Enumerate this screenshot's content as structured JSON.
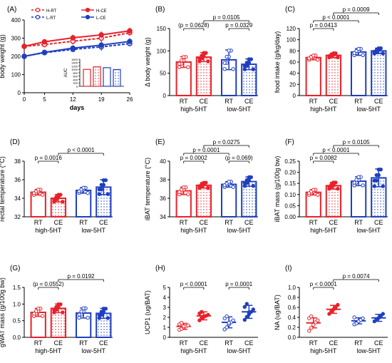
{
  "colors": {
    "red": "#e8212a",
    "blue": "#1f3fbf",
    "black": "#000000"
  },
  "chart_data": [
    {
      "panel": "(A)",
      "type": "line",
      "ylabel": "body weight (g)",
      "xlabel": "days",
      "x": [
        0,
        5,
        12,
        19,
        26
      ],
      "xticks": [
        "0",
        "5",
        "12",
        "19",
        "26"
      ],
      "ylim": [
        0,
        400
      ],
      "yticks": [
        "0",
        "100",
        "200",
        "300",
        "400"
      ],
      "series": [
        {
          "name": "H-RT",
          "color": "red",
          "dashed": true,
          "filled": false,
          "values": [
            255,
            265,
            283,
            300,
            330
          ],
          "err": [
            10,
            15,
            18,
            20,
            15
          ]
        },
        {
          "name": "H-CE",
          "color": "red",
          "dashed": false,
          "filled": true,
          "values": [
            255,
            280,
            302,
            318,
            340
          ],
          "err": [
            10,
            15,
            18,
            20,
            18
          ]
        },
        {
          "name": "L-RT",
          "color": "blue",
          "dashed": true,
          "filled": false,
          "values": [
            200,
            220,
            238,
            252,
            270
          ],
          "err": [
            10,
            12,
            15,
            22,
            15
          ]
        },
        {
          "name": "L-CE",
          "color": "blue",
          "dashed": false,
          "filled": true,
          "values": [
            200,
            222,
            245,
            262,
            282
          ],
          "err": [
            10,
            12,
            15,
            20,
            18
          ]
        }
      ],
      "inset": {
        "ylabel": "AUC",
        "yticks": [
          "0",
          "200",
          "400",
          "600",
          "800",
          "1000",
          "1200",
          "1400",
          "1600"
        ],
        "ylim": [
          0,
          1600
        ],
        "values": [
          1000,
          1150,
          1100,
          990
        ]
      }
    },
    {
      "panel": "(B)",
      "type": "bar",
      "ylabel": "Δ body weight (g)",
      "ylim": [
        0,
        150
      ],
      "yticks": [
        "0",
        "50",
        "100",
        "150"
      ],
      "categories": [
        "RT",
        "CE",
        "RT",
        "CE"
      ],
      "groups": [
        "high-5HT",
        "low-5HT"
      ],
      "values": [
        75,
        86,
        80,
        70
      ],
      "err": [
        12,
        10,
        22,
        12
      ],
      "annotations": [
        {
          "text": "(p = 0.0628)",
          "from": 0,
          "to": 1,
          "level": 1
        },
        {
          "text": "p = 0.0329",
          "from": 2,
          "to": 3,
          "level": 1
        },
        {
          "text": "p = 0.0105",
          "from": 1,
          "to": 3,
          "level": 2
        }
      ]
    },
    {
      "panel": "(C)",
      "type": "bar",
      "ylabel": "food intake (g/kg/day)",
      "ylim": [
        0,
        120
      ],
      "yticks": [
        "0",
        "20",
        "40",
        "60",
        "80",
        "100",
        "120"
      ],
      "categories": [
        "RT",
        "CE",
        "RT",
        "CE"
      ],
      "groups": [
        "high-5HT",
        "low-5HT"
      ],
      "values": [
        68,
        72,
        78,
        80
      ],
      "err": [
        4,
        4,
        6,
        5
      ],
      "annotations": [
        {
          "text": "p = 0.0413",
          "from": 0,
          "to": 1,
          "level": 1
        },
        {
          "text": "p < 0.0001",
          "from": 0,
          "to": 2,
          "level": 2
        },
        {
          "text": "p = 0.0009",
          "from": 1,
          "to": 3,
          "level": 3
        }
      ]
    },
    {
      "panel": "(D)",
      "type": "bar",
      "ylabel": "rectal temperature (°C)",
      "ylim": [
        32,
        38
      ],
      "yticks": [
        "32",
        "34",
        "36",
        "38"
      ],
      "categories": [
        "RT",
        "CE",
        "RT",
        "CE"
      ],
      "groups": [
        "high-5HT",
        "low-5HT"
      ],
      "values": [
        34.65,
        34.0,
        34.85,
        35.2
      ],
      "err": [
        0.3,
        0.4,
        0.3,
        0.8
      ],
      "annotations": [
        {
          "text": "p = 0.0016",
          "from": 0,
          "to": 1,
          "level": 1
        },
        {
          "text": "p < 0.0001",
          "from": 1,
          "to": 3,
          "level": 2
        }
      ]
    },
    {
      "panel": "(E)",
      "type": "bar",
      "ylabel": "iBAT temperature (°C)",
      "ylim": [
        34,
        40
      ],
      "yticks": [
        "34",
        "36",
        "38",
        "40"
      ],
      "categories": [
        "RT",
        "CE",
        "RT",
        "CE"
      ],
      "groups": [
        "high-5HT",
        "low-5HT"
      ],
      "values": [
        36.8,
        37.4,
        37.5,
        37.8
      ],
      "err": [
        0.4,
        0.3,
        0.3,
        0.5
      ],
      "annotations": [
        {
          "text": "p = 0.0002",
          "from": 0,
          "to": 1,
          "level": 1
        },
        {
          "text": "(p = 0.069)",
          "from": 2,
          "to": 3,
          "level": 1
        },
        {
          "text": "p = 0.0001",
          "from": 0,
          "to": 2,
          "level": 2
        },
        {
          "text": "p = 0.0275",
          "from": 1,
          "to": 3,
          "level": 3
        }
      ]
    },
    {
      "panel": "(F)",
      "type": "bar",
      "ylabel": "iBAT mass (g/100g bw)",
      "ylim": [
        0,
        0.25
      ],
      "yticks": [
        "0.00",
        "0.05",
        "0.10",
        "0.15",
        "0.20",
        "0.25"
      ],
      "categories": [
        "RT",
        "CE",
        "RT",
        "CE"
      ],
      "groups": [
        "high-5HT",
        "low-5HT"
      ],
      "values": [
        0.11,
        0.14,
        0.16,
        0.175
      ],
      "err": [
        0.012,
        0.015,
        0.02,
        0.04
      ],
      "annotations": [
        {
          "text": "p = 0.0082",
          "from": 0,
          "to": 1,
          "level": 1
        },
        {
          "text": "p < 0.0001",
          "from": 0,
          "to": 2,
          "level": 2
        },
        {
          "text": "p = 0.0105",
          "from": 1,
          "to": 3,
          "level": 3
        }
      ]
    },
    {
      "panel": "(G)",
      "type": "bar",
      "ylabel": "gWAT mass (g/100g bw)",
      "ylim": [
        0,
        1.5
      ],
      "yticks": [
        "0.0",
        "0.5",
        "1.0",
        "1.5"
      ],
      "categories": [
        "RT",
        "CE",
        "RT",
        "CE"
      ],
      "groups": [
        "high-5HT",
        "low-5HT"
      ],
      "values": [
        0.75,
        0.87,
        0.73,
        0.72
      ],
      "err": [
        0.12,
        0.13,
        0.15,
        0.15
      ],
      "annotations": [
        {
          "text": "(p = 0.0552)",
          "from": 0,
          "to": 1,
          "level": 1
        },
        {
          "text": "p = 0.0192",
          "from": 1,
          "to": 3,
          "level": 2
        }
      ]
    },
    {
      "panel": "(H)",
      "type": "dot",
      "ylabel": "UCP1 (ug/BAT)",
      "ylim": [
        0,
        5
      ],
      "yticks": [
        "0",
        "1",
        "2",
        "3",
        "4",
        "5"
      ],
      "categories": [
        "RT",
        "CE",
        "RT",
        "CE"
      ],
      "groups": [
        "high-5HT",
        "low-5HT"
      ],
      "values": [
        1.1,
        2.15,
        1.5,
        2.55
      ],
      "err": [
        0.3,
        0.4,
        0.55,
        0.65
      ],
      "points": [
        [
          0.75,
          0.85,
          1.0,
          1.1,
          1.2,
          1.3,
          1.45,
          1.1
        ],
        [
          1.7,
          1.95,
          2.05,
          2.15,
          2.25,
          2.4,
          2.55,
          2.1
        ],
        [
          0.8,
          1.0,
          1.3,
          1.5,
          1.7,
          1.9,
          2.1,
          1.45
        ],
        [
          1.75,
          2.05,
          2.3,
          2.55,
          2.8,
          3.05,
          3.35,
          2.5
        ]
      ],
      "annotations": [
        {
          "text": "p < 0.0001",
          "from": 0,
          "to": 1,
          "level": 1
        },
        {
          "text": "p = 0.0001",
          "from": 2,
          "to": 3,
          "level": 1
        }
      ]
    },
    {
      "panel": "(I)",
      "type": "dot",
      "ylabel": "NA (ug/BAT)",
      "ylim": [
        0,
        1.0
      ],
      "yticks": [
        "0.0",
        "0.2",
        "0.4",
        "0.6",
        "0.8",
        "1.0"
      ],
      "categories": [
        "RT",
        "CE",
        "RT",
        "CE"
      ],
      "groups": [
        "high-5HT",
        "low-5HT"
      ],
      "values": [
        0.29,
        0.56,
        0.33,
        0.39
      ],
      "err": [
        0.1,
        0.08,
        0.06,
        0.07
      ],
      "points": [
        [
          0.13,
          0.19,
          0.25,
          0.3,
          0.34,
          0.38,
          0.42
        ],
        [
          0.47,
          0.52,
          0.56,
          0.6,
          0.65
        ],
        [
          0.26,
          0.29,
          0.32,
          0.35,
          0.38,
          0.4,
          0.28
        ],
        [
          0.32,
          0.36,
          0.39,
          0.43,
          0.47
        ]
      ],
      "annotations": [
        {
          "text": "p < 0.0001",
          "from": 0,
          "to": 1,
          "level": 1
        },
        {
          "text": "p = 0.0074",
          "from": 1,
          "to": 3,
          "level": 2
        }
      ]
    }
  ]
}
